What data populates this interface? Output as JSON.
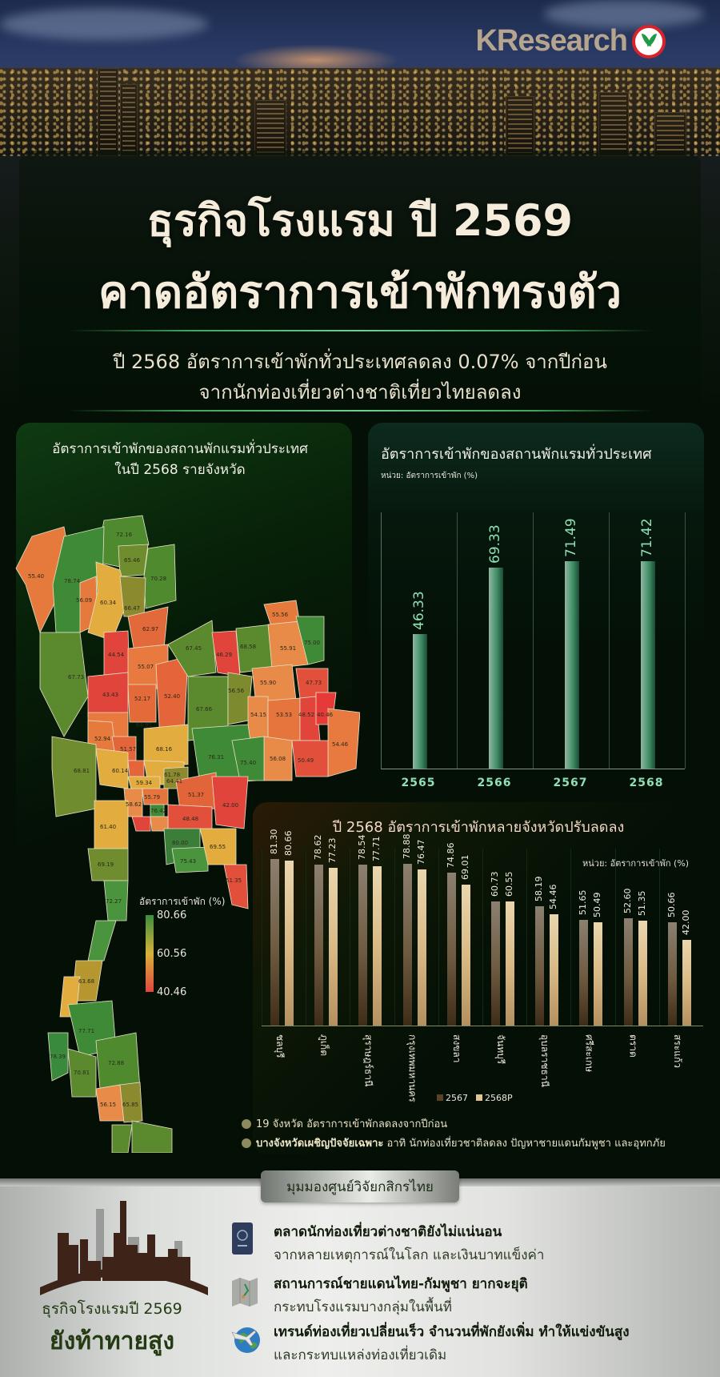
{
  "brand": {
    "logo_text": "KResearch",
    "logo_icon": "kasikorn-leaf-logo-icon"
  },
  "header": {
    "title_line1": "ธุรกิจโรงแรม ปี 2569",
    "title_line2": "คาดอัตราการเข้าพักทรงตัว",
    "subtitle_line1": "ปี 2568 อัตราการเข้าพักทั่วประเทศลดลง 0.07% จากปีก่อน",
    "subtitle_line2": "จากนักท่องเที่ยวต่างชาติเที่ยวไทยลดลง"
  },
  "map": {
    "title_line1": "อัตราการเข้าพักของสถานพักแรมทั่วประเทศ",
    "title_line2": "ในปี 2568 รายจังหวัด",
    "legend_title": "อัตราการเข้าพัก (%)",
    "legend_max": "80.66",
    "legend_mid": "60.56",
    "legend_min": "40.46",
    "colors": {
      "high": "#3c8d3e",
      "mid": "#d7b23a",
      "low": "#e2453f"
    },
    "labels": [
      "72.16",
      "65.46",
      "70.28",
      "55.40",
      "78.74",
      "56.09",
      "60.34",
      "66.47",
      "62.97",
      "44.54",
      "67.45",
      "46.29",
      "68.58",
      "55.56",
      "55.91",
      "75.00",
      "67.73",
      "55.07",
      "43.43",
      "52.17",
      "52.40",
      "67.66",
      "56.56",
      "55.90",
      "47.73",
      "54.15",
      "53.53",
      "48.52",
      "40.46",
      "64.91",
      "52.94",
      "51.57",
      "68.16",
      "76.31",
      "75.40",
      "56.08",
      "50.49",
      "54.46",
      "68.81",
      "60.14",
      "61.78",
      "59.34",
      "64.41",
      "55.79",
      "51.37",
      "58.62",
      "76.42",
      "42.00",
      "61.40",
      "48.48",
      "80.00",
      "75.43",
      "69.55",
      "69.19",
      "51.35",
      "72.27",
      "63.68",
      "77.71",
      "78.39",
      "70.81",
      "72.88",
      "56.15",
      "65.85",
      "58.48",
      "60.91",
      "59.76",
      "76.52",
      "66.70"
    ]
  },
  "national_chart": {
    "title": "อัตราการเข้าพักของสถานพักแรมทั่วประเทศ",
    "unit": "หน่วย: อัตราการเข้าพัก (%)"
  },
  "province_chart": {
    "title": "ปี 2568 อัตราการเข้าพักหลายจังหวัดปรับลดลง",
    "unit": "หน่วย: อัตราการเข้าพัก (%)",
    "legend": [
      "2567",
      "2568P"
    ]
  },
  "notes": {
    "note1": "19 จังหวัด อัตราการเข้าพักลดลงจากปีก่อน",
    "note2_bold": "บางจังหวัดเผชิญปัจจัยเฉพาะ",
    "note2_rest": " อาทิ นักท่องเที่ยวชาติลดลง ปัญหาชายแดนกัมพูชา และอุทกภัย"
  },
  "outlook": {
    "badge": "มุมมองศูนย์วิจัยกสิกรไทย",
    "left_line1": "ธุรกิจโรงแรมปี 2569",
    "left_line2": "ยังท้าทายสูง",
    "points": [
      {
        "icon": "passport-icon",
        "head": "ตลาดนักท่องเที่ยวต่างชาติยังไม่แน่นอน",
        "sub": "จากหลายเหตุการณ์ในโลก และเงินบาทแข็งค่า"
      },
      {
        "icon": "border-map-icon",
        "head": "สถานการณ์ชายแดนไทย-กัมพูชา ยากจะยุติ",
        "sub": "กระทบโรงแรมบางกลุ่มในพื้นที่"
      },
      {
        "icon": "globe-plane-icon",
        "head": "เทรนด์ท่องเที่ยวเปลี่ยนเร็ว จำนวนที่พักยังเพิ่ม ทำให้แข่งขันสูง",
        "sub": "และกระทบแหล่งท่องเที่ยวเดิม"
      }
    ]
  },
  "chart_data": [
    {
      "type": "bar",
      "title": "อัตราการเข้าพักของสถานพักแรมทั่วประเทศ",
      "ylabel": "หน่วย: อัตราการเข้าพัก (%)",
      "xlabel": "",
      "categories": [
        "2565",
        "2566",
        "2567",
        "2568"
      ],
      "values": [
        46.33,
        69.33,
        71.49,
        71.42
      ],
      "value_labels": [
        "46.33",
        "69.33",
        "71.49",
        "71.42"
      ],
      "ylim": [
        0,
        80
      ],
      "grid": false
    },
    {
      "type": "bar",
      "title": "ปี 2568 อัตราการเข้าพักหลายจังหวัดปรับลดลง",
      "ylabel": "หน่วย: อัตราการเข้าพัก (%)",
      "xlabel": "",
      "categories": [
        "ชลบุรี",
        "ภูเก็ต",
        "สุราษฎร์ธานี",
        "กรุงเทพมหานคร",
        "สงขลา",
        "จันทบุรี",
        "อุบลราชธานี",
        "ศรีสะเกษ",
        "ตราด",
        "สระแก้ว"
      ],
      "series": [
        {
          "name": "2567",
          "values": [
            81.3,
            78.62,
            78.54,
            78.88,
            74.86,
            60.73,
            58.19,
            51.65,
            52.6,
            50.66
          ],
          "labels": [
            "81.30",
            "78.62",
            "78.54",
            "78.88",
            "74.86",
            "60.73",
            "58.19",
            "51.65",
            "52.60",
            "50.66"
          ]
        },
        {
          "name": "2568P",
          "values": [
            80.66,
            77.23,
            77.71,
            76.47,
            69.01,
            60.55,
            54.46,
            50.49,
            51.35,
            42.0
          ],
          "labels": [
            "80.66",
            "77.23",
            "77.71",
            "76.47",
            "69.01",
            "60.55",
            "54.46",
            "50.49",
            "51.35",
            "42.00"
          ]
        }
      ],
      "legend_position": "bottom",
      "ylim": [
        0,
        90
      ],
      "grid": false
    },
    {
      "type": "heatmap",
      "title": "อัตราการเข้าพักของสถานพักแรมทั่วประเทศ ในปี 2568 รายจังหวัด",
      "legend_title": "อัตราการเข้าพัก (%)",
      "color_scale": {
        "min": 40.46,
        "mid": 60.56,
        "max": 80.66
      },
      "note": "Choropleth map of Thailand provinces"
    }
  ]
}
